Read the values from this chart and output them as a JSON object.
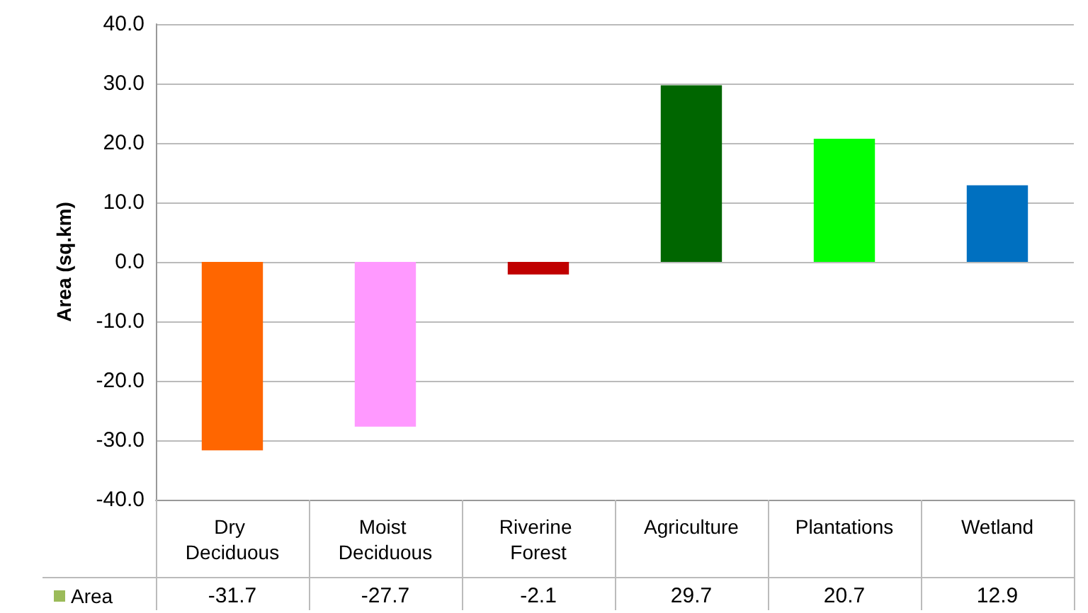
{
  "chart_data": {
    "type": "bar",
    "ylabel": "Area (sq.km)",
    "categories": [
      "Dry Deciduous",
      "Moist Deciduous",
      "Riverine Forest",
      "Agriculture",
      "Plantations",
      "Wetland"
    ],
    "series": [
      {
        "name": "Area",
        "color": "#9bbb59",
        "colors": [
          "#ff6600",
          "#ff99ff",
          "#c00000",
          "#006600",
          "#00ff00",
          "#0070c0"
        ],
        "values": [
          -31.7,
          -27.7,
          -2.1,
          29.7,
          20.7,
          12.9
        ]
      }
    ],
    "ylim": [
      -40,
      40
    ],
    "yticks": [
      {
        "value": -40,
        "label": "-40.0"
      },
      {
        "value": -30,
        "label": "-30.0"
      },
      {
        "value": -20,
        "label": "-20.0"
      },
      {
        "value": -10,
        "label": "-10.0"
      },
      {
        "value": 0,
        "label": "0.0"
      },
      {
        "value": 10,
        "label": "10.0"
      },
      {
        "value": 20,
        "label": "20.0"
      },
      {
        "value": 30,
        "label": "30.0"
      },
      {
        "value": 40,
        "label": "40.0"
      }
    ],
    "grid": "y",
    "legend": "bottom left",
    "data_labels": true
  }
}
